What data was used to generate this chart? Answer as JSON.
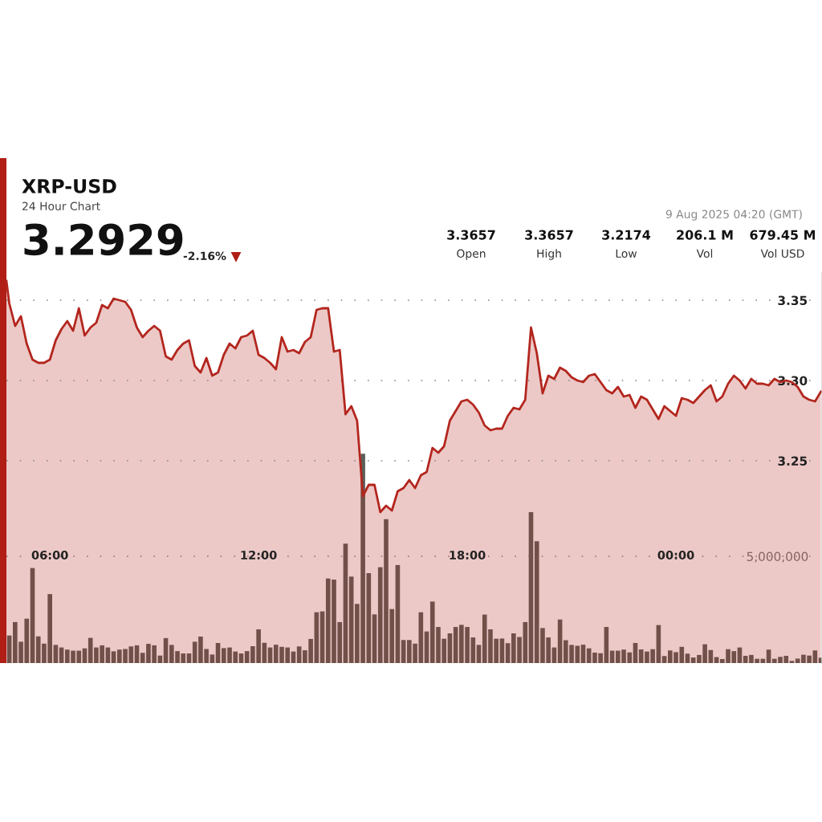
{
  "chart_data": {
    "type": "area",
    "title": "XRP-USD",
    "subtitle": "24 Hour Chart",
    "annotations": [
      "3.2929",
      "-2.16%",
      "▼",
      "9 Aug 2025 04:20 (GMT)",
      "3.3657",
      "Open",
      "3.3657",
      "High",
      "3.2174",
      "Low",
      "206.1 M",
      "Vol",
      "679.45 M",
      "Vol USD"
    ],
    "x": [
      4.833,
      5,
      5.167,
      5.333,
      5.5,
      5.667,
      5.833,
      6,
      6.167,
      6.333,
      6.5,
      6.667,
      6.833,
      7,
      7.167,
      7.333,
      7.5,
      7.667,
      7.833,
      8,
      8.167,
      8.333,
      8.5,
      8.667,
      8.833,
      9,
      9.167,
      9.333,
      9.5,
      9.667,
      9.833,
      10,
      10.167,
      10.333,
      10.5,
      10.667,
      10.833,
      11,
      11.167,
      11.333,
      11.5,
      11.667,
      11.833,
      12,
      12.167,
      12.333,
      12.5,
      12.667,
      12.833,
      13,
      13.167,
      13.333,
      13.5,
      13.667,
      13.833,
      14,
      14.167,
      14.333,
      14.5,
      14.667,
      14.833,
      15,
      15.167,
      15.333,
      15.5,
      15.667,
      15.833,
      16,
      16.167,
      16.333,
      16.5,
      16.667,
      16.833,
      17,
      17.167,
      17.333,
      17.5,
      17.667,
      17.833,
      18,
      18.167,
      18.333,
      18.5,
      18.667,
      18.833,
      19,
      19.167,
      19.333,
      19.5,
      19.667,
      19.833,
      20,
      20.167,
      20.333,
      20.5,
      20.667,
      20.833,
      21,
      21.167,
      21.333,
      21.5,
      21.667,
      21.833,
      22,
      22.167,
      22.333,
      22.5,
      22.667,
      22.833,
      23,
      23.167,
      23.333,
      23.5,
      23.667,
      23.833,
      24,
      24.167,
      24.333,
      24.5,
      24.667,
      24.833,
      25,
      25.167,
      25.333,
      25.5,
      25.667,
      25.833,
      26,
      26.167,
      26.333,
      26.5,
      26.667,
      26.833,
      27,
      27.167,
      27.333,
      27.5,
      27.667,
      27.833,
      28,
      28.167
    ],
    "xlim": [
      4.75,
      28.2
    ],
    "xticks": [
      {
        "value": 6,
        "label": "06:00"
      },
      {
        "value": 12,
        "label": "12:00"
      },
      {
        "value": 18,
        "label": "18:00"
      },
      {
        "value": 24,
        "label": "00:00"
      }
    ],
    "ylim": [
      3.124,
      3.367
    ],
    "yticks": [
      3.25,
      {
        "value": 3.3,
        "label": "3.30"
      },
      3.35
    ],
    "y2lim": [
      0,
      18270000
    ],
    "y2ticks": [
      {
        "value": 5000000,
        "label": "5,000,000"
      }
    ],
    "grid": "y",
    "series": [
      {
        "type": "bar",
        "axis": "y2",
        "color": "#5c5e58",
        "values": [
          1290000,
          1920000,
          1000000,
          2080000,
          4450000,
          1250000,
          910000,
          3230000,
          850000,
          730000,
          630000,
          580000,
          580000,
          690000,
          1180000,
          730000,
          830000,
          730000,
          550000,
          630000,
          660000,
          780000,
          830000,
          480000,
          900000,
          830000,
          350000,
          1170000,
          850000,
          560000,
          450000,
          450000,
          1000000,
          1240000,
          660000,
          400000,
          940000,
          700000,
          730000,
          540000,
          450000,
          560000,
          790000,
          1580000,
          950000,
          730000,
          860000,
          760000,
          730000,
          540000,
          780000,
          600000,
          1130000,
          2380000,
          2420000,
          3960000,
          3910000,
          1920000,
          5590000,
          4050000,
          2770000,
          9800000,
          4210000,
          2280000,
          4490000,
          6740000,
          2530000,
          4590000,
          1080000,
          1080000,
          910000,
          2380000,
          1480000,
          2880000,
          1690000,
          1140000,
          1390000,
          1690000,
          1790000,
          1690000,
          1200000,
          850000,
          2270000,
          1580000,
          1140000,
          1150000,
          930000,
          1390000,
          1220000,
          1920000,
          7070000,
          5700000,
          1640000,
          1200000,
          730000,
          2040000,
          1070000,
          850000,
          810000,
          860000,
          690000,
          490000,
          460000,
          1690000,
          580000,
          580000,
          630000,
          500000,
          940000,
          640000,
          540000,
          650000,
          1780000,
          330000,
          590000,
          510000,
          760000,
          440000,
          260000,
          380000,
          880000,
          610000,
          280000,
          190000,
          650000,
          560000,
          730000,
          340000,
          380000,
          200000,
          200000,
          630000,
          200000,
          290000,
          340000,
          100000,
          210000,
          390000,
          350000,
          590000,
          250000
        ]
      },
      {
        "color": "#b3261e",
        "x": [
          4.75,
          4.833,
          5,
          5.167,
          5.333,
          5.5,
          5.667,
          5.833,
          6,
          6.167,
          6.333,
          6.5,
          6.667,
          6.833,
          7,
          7.167,
          7.333,
          7.5,
          7.667,
          7.833,
          8,
          8.167,
          8.333,
          8.5,
          8.667,
          8.833,
          9,
          9.167,
          9.333,
          9.5,
          9.667,
          9.833,
          10,
          10.167,
          10.333,
          10.5,
          10.667,
          10.833,
          11,
          11.167,
          11.333,
          11.5,
          11.667,
          11.833,
          12,
          12.167,
          12.333,
          12.5,
          12.667,
          12.833,
          13,
          13.167,
          13.333,
          13.5,
          13.667,
          13.833,
          14,
          14.167,
          14.333,
          14.5,
          14.667,
          14.833,
          15,
          15.167,
          15.333,
          15.5,
          15.667,
          15.833,
          16,
          16.167,
          16.333,
          16.5,
          16.667,
          16.833,
          17,
          17.167,
          17.333,
          17.5,
          17.667,
          17.833,
          18,
          18.167,
          18.333,
          18.5,
          18.667,
          18.833,
          19,
          19.167,
          19.333,
          19.5,
          19.667,
          19.833,
          20,
          20.167,
          20.333,
          20.5,
          20.667,
          20.833,
          21,
          21.167,
          21.333,
          21.5,
          21.667,
          21.833,
          22,
          22.167,
          22.333,
          22.5,
          22.667,
          22.833,
          23,
          23.167,
          23.333,
          23.5,
          23.667,
          23.833,
          24,
          24.167,
          24.333,
          24.5,
          24.667,
          24.833,
          25,
          25.167,
          25.333,
          25.5,
          25.667,
          25.833,
          26,
          26.167,
          26.333,
          26.5,
          26.667,
          26.833,
          27,
          27.167,
          27.333,
          27.5,
          27.667,
          27.833,
          28,
          28.167
        ],
        "values": [
          3.362,
          3.348,
          3.334,
          3.34,
          3.323,
          3.313,
          3.311,
          3.311,
          3.313,
          3.325,
          3.332,
          3.337,
          3.331,
          3.345,
          3.328,
          3.333,
          3.336,
          3.347,
          3.345,
          3.351,
          3.35,
          3.349,
          3.344,
          3.333,
          3.327,
          3.331,
          3.334,
          3.331,
          3.315,
          3.313,
          3.319,
          3.323,
          3.325,
          3.309,
          3.305,
          3.314,
          3.303,
          3.305,
          3.316,
          3.323,
          3.32,
          3.327,
          3.328,
          3.331,
          3.316,
          3.314,
          3.311,
          3.307,
          3.327,
          3.318,
          3.319,
          3.317,
          3.324,
          3.327,
          3.344,
          3.345,
          3.345,
          3.318,
          3.319,
          3.279,
          3.284,
          3.275,
          3.228,
          3.235,
          3.235,
          3.218,
          3.222,
          3.219,
          3.231,
          3.233,
          3.238,
          3.233,
          3.241,
          3.243,
          3.258,
          3.255,
          3.259,
          3.275,
          3.281,
          3.287,
          3.288,
          3.285,
          3.28,
          3.272,
          3.269,
          3.27,
          3.27,
          3.278,
          3.283,
          3.282,
          3.288,
          3.333,
          3.317,
          3.292,
          3.303,
          3.301,
          3.308,
          3.306,
          3.302,
          3.3,
          3.299,
          3.303,
          3.304,
          3.299,
          3.294,
          3.292,
          3.296,
          3.29,
          3.291,
          3.283,
          3.29,
          3.288,
          3.282,
          3.276,
          3.284,
          3.281,
          3.278,
          3.289,
          3.288,
          3.286,
          3.29,
          3.294,
          3.297,
          3.287,
          3.29,
          3.298,
          3.303,
          3.3,
          3.295,
          3.301,
          3.298,
          3.298,
          3.297,
          3.301,
          3.299,
          3.3,
          3.299,
          3.296,
          3.29,
          3.288,
          3.287,
          3.293
        ]
      }
    ]
  }
}
